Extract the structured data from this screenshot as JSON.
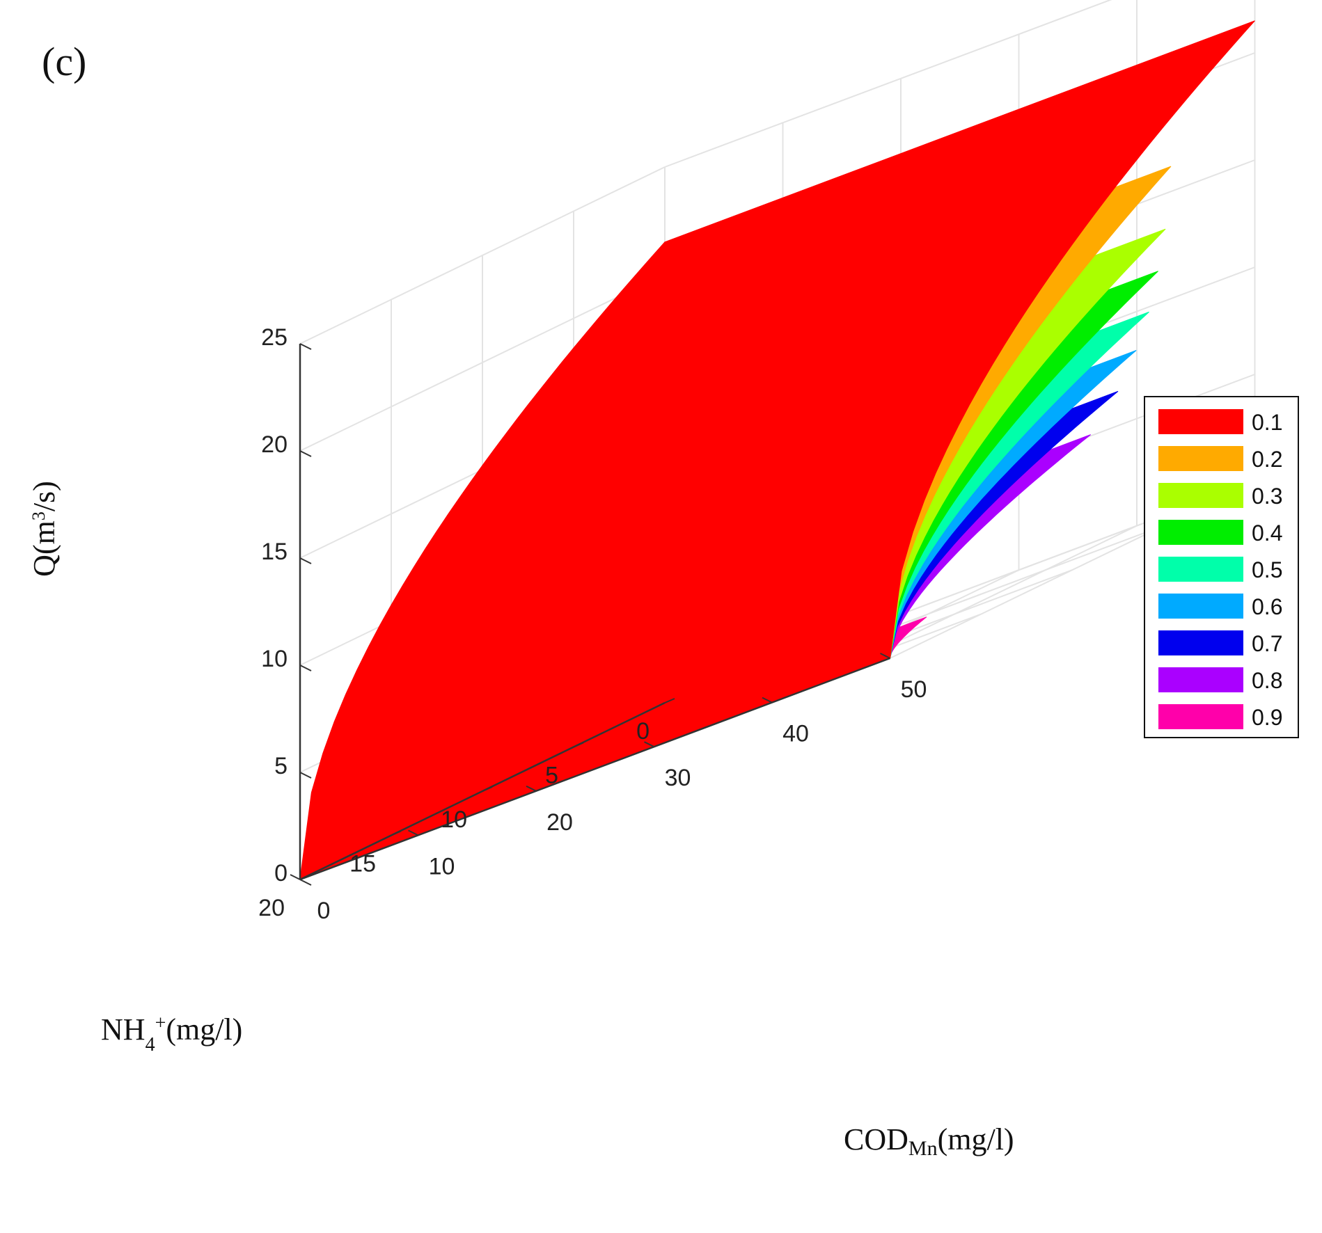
{
  "chart_data": {
    "type": "surface3d",
    "panel_label": "(c)",
    "z_axis": {
      "label_main": "Q(m",
      "label_sup": "3",
      "label_tail": "/s)",
      "ticks": [
        0,
        5,
        10,
        15,
        20,
        25
      ],
      "range": [
        0,
        25
      ]
    },
    "x_axis": {
      "label_main": "NH",
      "label_sub": "4",
      "label_sup": "+",
      "label_tail": "(mg/l)",
      "ticks": [
        0,
        5,
        10,
        15,
        20
      ],
      "range": [
        0,
        20
      ]
    },
    "y_axis": {
      "label_main": "COD",
      "label_sub": "Mn",
      "label_tail": "(mg/l)",
      "ticks": [
        0,
        10,
        20,
        30,
        40,
        50
      ],
      "range": [
        0,
        50
      ]
    },
    "grid": true,
    "legend_position": "right",
    "series": [
      {
        "name": "0.1",
        "color": "#ff0000",
        "nh_start": 0,
        "cod_start": 0,
        "q_max": 21.5
      },
      {
        "name": "0.2",
        "color": "#ffaa00",
        "nh_start": 4.6,
        "cod_start": 4.5,
        "q_max": 16.6
      },
      {
        "name": "0.3",
        "color": "#aaff00",
        "nh_start": 4.9,
        "cod_start": 9,
        "q_max": 13.8
      },
      {
        "name": "0.4",
        "color": "#00ee00",
        "nh_start": 5.3,
        "cod_start": 13,
        "q_max": 12
      },
      {
        "name": "0.5",
        "color": "#00ffaa",
        "nh_start": 5.8,
        "cod_start": 17,
        "q_max": 10.3
      },
      {
        "name": "0.6",
        "color": "#00aaff",
        "nh_start": 6.5,
        "cod_start": 21,
        "q_max": 8.8
      },
      {
        "name": "0.7",
        "color": "#0000ee",
        "nh_start": 7.5,
        "cod_start": 26,
        "q_max": 7.3
      },
      {
        "name": "0.8",
        "color": "#aa00ff",
        "nh_start": 9,
        "cod_start": 32,
        "q_max": 5.9
      },
      {
        "name": "0.9",
        "color": "#ff00aa",
        "nh_start": 18,
        "cod_start": 44,
        "q_max": 1.1
      }
    ]
  }
}
